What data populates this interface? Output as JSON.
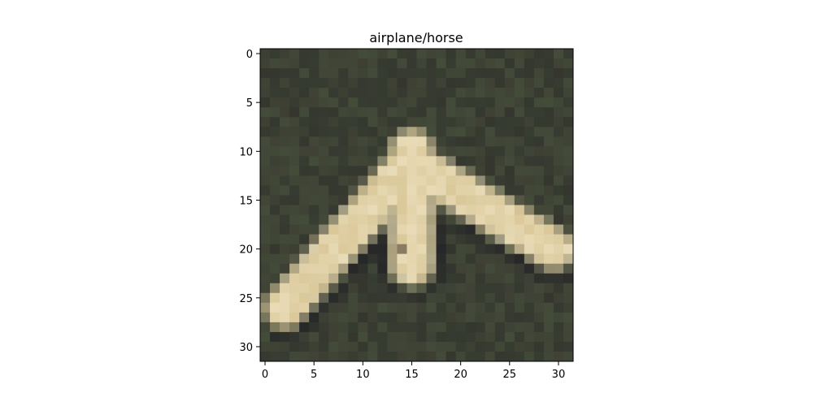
{
  "title": "airplane/horse",
  "image": {
    "description_colors": {
      "background": "#3d3f33",
      "background_dark": "#2c2f2a",
      "background_green": "#46503c",
      "object_light": "#e9dcb8",
      "object_mid": "#d4c08d",
      "object_shadow": "#1f1e24",
      "object_detail": "#8a7c63"
    },
    "pixels_wide": 32,
    "pixels_high": 32
  },
  "axes": {
    "x_ticks": [
      "0",
      "5",
      "10",
      "15",
      "20",
      "25",
      "30"
    ],
    "y_ticks": [
      "0",
      "5",
      "10",
      "15",
      "20",
      "25",
      "30"
    ],
    "xlim": [
      -0.5,
      31.5
    ],
    "ylim": [
      31.5,
      -0.5
    ]
  }
}
